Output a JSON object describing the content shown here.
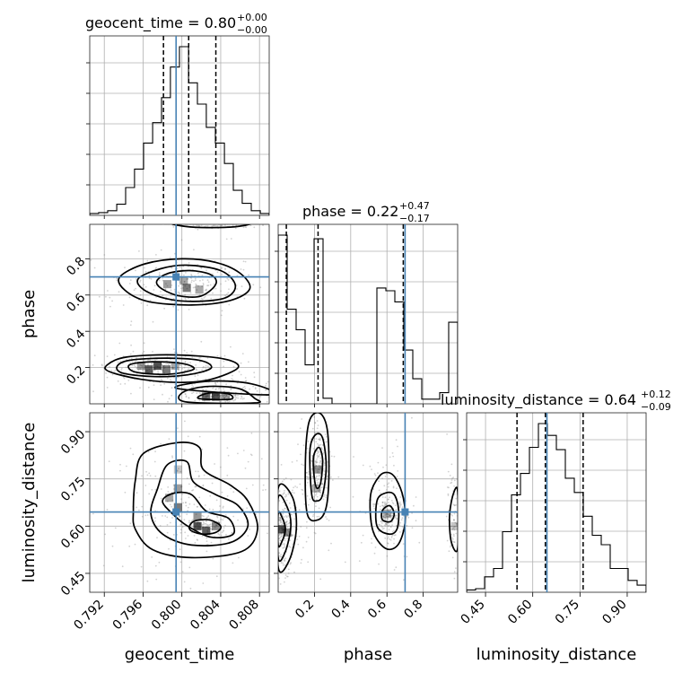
{
  "chart_data": {
    "type": "corner",
    "parameters": [
      "geocent_time",
      "phase",
      "luminosity_distance"
    ],
    "colors": {
      "truth": "#4682b4",
      "histogram": "#000000",
      "contour": "#000000",
      "grid": "#b0b0b0",
      "samples": "#7f7f7f"
    },
    "ranges": {
      "geocent_time": [
        0.7905,
        0.809
      ],
      "phase": [
        0.0,
        0.99
      ],
      "luminosity_distance": [
        0.39,
        0.96
      ]
    },
    "ticks": {
      "geocent_time": [
        0.792,
        0.796,
        0.8,
        0.804,
        0.808
      ],
      "phase": [
        0.2,
        0.4,
        0.6,
        0.8
      ],
      "luminosity_distance": [
        0.45,
        0.6,
        0.75,
        0.9
      ]
    },
    "tick_labels": {
      "geocent_time": [
        "0.792",
        "0.796",
        "0.800",
        "0.804",
        "0.808"
      ],
      "phase": [
        "0.2",
        "0.4",
        "0.6",
        "0.8"
      ],
      "luminosity_distance": [
        "0.45",
        "0.60",
        "0.75",
        "0.90"
      ]
    },
    "truths": {
      "geocent_time": 0.7994,
      "phase": 0.7,
      "luminosity_distance": 0.645
    },
    "quantiles": {
      "geocent_time": [
        0.7981,
        0.8007,
        0.8035
      ],
      "phase": [
        0.045,
        0.22,
        0.69
      ],
      "luminosity_distance": [
        0.55,
        0.64,
        0.76
      ]
    },
    "titles": {
      "geocent_time": {
        "main": "geocent_time = 0.80",
        "upper": "+0.00",
        "lower": "−0.00"
      },
      "phase": {
        "main": "phase = 0.22",
        "upper": "+0.47",
        "lower": "−0.17"
      },
      "luminosity_distance": {
        "main": "luminosity_distance = 0.64",
        "upper": "+0.12",
        "lower": "−0.09"
      }
    },
    "axis_labels": {
      "x": [
        "geocent_time",
        "phase",
        "luminosity_distance"
      ],
      "y": [
        "phase",
        "luminosity_distance"
      ]
    },
    "histograms": {
      "geocent_time": {
        "edges": [
          0.7905,
          0.79142,
          0.79235,
          0.79328,
          0.7942,
          0.79512,
          0.79605,
          0.79698,
          0.7979,
          0.79882,
          0.79975,
          0.80068,
          0.8016,
          0.80252,
          0.80345,
          0.80438,
          0.8053,
          0.80622,
          0.80715,
          0.80808,
          0.809
        ],
        "counts": [
          2,
          3,
          5,
          12,
          30,
          50,
          78,
          100,
          127,
          160,
          182,
          143,
          120,
          95,
          78,
          56,
          27,
          13,
          5,
          2
        ]
      },
      "phase": {
        "edges": [
          0.0,
          0.0495,
          0.099,
          0.1485,
          0.198,
          0.2475,
          0.297,
          0.3465,
          0.396,
          0.4455,
          0.495,
          0.5445,
          0.594,
          0.6435,
          0.693,
          0.7425,
          0.792,
          0.8415,
          0.891,
          0.9405,
          0.99
        ],
        "counts": [
          182,
          102,
          80,
          42,
          178,
          6,
          0,
          0,
          0,
          0,
          0,
          125,
          122,
          110,
          58,
          27,
          5,
          5,
          12,
          88
        ]
      },
      "luminosity_distance": {
        "edges": [
          0.39,
          0.4185,
          0.447,
          0.4755,
          0.504,
          0.5325,
          0.561,
          0.5895,
          0.618,
          0.6465,
          0.675,
          0.7035,
          0.732,
          0.7605,
          0.789,
          0.8175,
          0.846,
          0.8745,
          0.903,
          0.9315,
          0.96
        ],
        "counts": [
          2,
          3,
          13,
          20,
          51,
          82,
          100,
          122,
          142,
          132,
          120,
          96,
          84,
          64,
          48,
          40,
          20,
          20,
          10,
          6
        ]
      }
    },
    "panels_2d": [
      {
        "x": "geocent_time",
        "y": "phase",
        "contours": [
          [
            [
              0.7974,
              0.675
            ],
            [
              0.7985,
              0.718
            ],
            [
              0.8008,
              0.735
            ],
            [
              0.803,
              0.712
            ],
            [
              0.8035,
              0.66
            ],
            [
              0.802,
              0.595
            ],
            [
              0.7998,
              0.595
            ],
            [
              0.798,
              0.632
            ]
          ],
          [
            [
              0.7955,
              0.69
            ],
            [
              0.7978,
              0.745
            ],
            [
              0.8005,
              0.765
            ],
            [
              0.804,
              0.735
            ],
            [
              0.8055,
              0.655
            ],
            [
              0.8045,
              0.585
            ],
            [
              0.8012,
              0.565
            ],
            [
              0.7984,
              0.58
            ],
            [
              0.7961,
              0.628
            ]
          ],
          [
            [
              0.7936,
              0.7
            ],
            [
              0.7962,
              0.772
            ],
            [
              0.8,
              0.8
            ],
            [
              0.8035,
              0.78
            ],
            [
              0.806,
              0.72
            ],
            [
              0.807,
              0.635
            ],
            [
              0.805,
              0.57
            ],
            [
              0.801,
              0.545
            ],
            [
              0.7965,
              0.565
            ],
            [
              0.7941,
              0.628
            ]
          ],
          [
            [
              0.7952,
              0.175
            ],
            [
              0.7946,
              0.215
            ],
            [
              0.797,
              0.232
            ],
            [
              0.8001,
              0.222
            ],
            [
              0.8012,
              0.19
            ],
            [
              0.7985,
              0.163
            ]
          ],
          [
            [
              0.7933,
              0.205
            ],
            [
              0.7946,
              0.24
            ],
            [
              0.7985,
              0.252
            ],
            [
              0.802,
              0.238
            ],
            [
              0.803,
              0.196
            ],
            [
              0.8006,
              0.16
            ],
            [
              0.7972,
              0.15
            ],
            [
              0.794,
              0.168
            ]
          ],
          [
            [
              0.7923,
              0.215
            ],
            [
              0.7943,
              0.258
            ],
            [
              0.7993,
              0.27
            ],
            [
              0.8043,
              0.248
            ],
            [
              0.8058,
              0.2
            ],
            [
              0.803,
              0.135
            ],
            [
              0.7998,
              0.118
            ],
            [
              0.7958,
              0.135
            ],
            [
              0.7925,
              0.178
            ]
          ],
          [
            [
              0.8017,
              0.03
            ],
            [
              0.8028,
              0.06
            ],
            [
              0.8048,
              0.055
            ],
            [
              0.805,
              0.025
            ]
          ],
          [
            [
              0.8,
              0.06
            ],
            [
              0.8024,
              0.095
            ],
            [
              0.8058,
              0.085
            ],
            [
              0.8075,
              0.03
            ],
            [
              0.8075,
              0.005
            ],
            [
              0.8005,
              0.01
            ]
          ],
          [
            [
              0.7995,
              0.085
            ],
            [
              0.803,
              0.125
            ],
            [
              0.8072,
              0.11
            ],
            [
              0.8093,
              0.05
            ]
          ],
          [
            [
              0.7992,
              1.0
            ],
            [
              0.8004,
              0.978
            ],
            [
              0.803,
              0.972
            ],
            [
              0.806,
              0.98
            ],
            [
              0.8066,
              1.0
            ]
          ]
        ],
        "density": [
          {
            "x": 0.7985,
            "y": 0.66,
            "v": 0.5
          },
          {
            "x": 0.8002,
            "y": 0.68,
            "v": 0.45
          },
          {
            "x": 0.8005,
            "y": 0.64,
            "v": 0.7
          },
          {
            "x": 0.8018,
            "y": 0.63,
            "v": 0.45
          },
          {
            "x": 0.7958,
            "y": 0.21,
            "v": 0.5
          },
          {
            "x": 0.7966,
            "y": 0.19,
            "v": 0.85
          },
          {
            "x": 0.7975,
            "y": 0.21,
            "v": 0.9
          },
          {
            "x": 0.7984,
            "y": 0.19,
            "v": 0.7
          },
          {
            "x": 0.7993,
            "y": 0.21,
            "v": 0.45
          },
          {
            "x": 0.8025,
            "y": 0.04,
            "v": 0.8
          },
          {
            "x": 0.8035,
            "y": 0.04,
            "v": 0.9
          },
          {
            "x": 0.8045,
            "y": 0.045,
            "v": 0.5
          }
        ]
      },
      {
        "x": "geocent_time",
        "y": "luminosity_distance",
        "contours": [
          [
            [
              0.8012,
              0.615
            ],
            [
              0.8008,
              0.59
            ],
            [
              0.802,
              0.575
            ],
            [
              0.8035,
              0.58
            ],
            [
              0.804,
              0.6
            ],
            [
              0.8028,
              0.62
            ]
          ],
          [
            [
              0.799,
              0.64
            ],
            [
              0.8006,
              0.6
            ],
            [
              0.803,
              0.565
            ],
            [
              0.8053,
              0.575
            ],
            [
              0.8048,
              0.625
            ],
            [
              0.8025,
              0.648
            ],
            [
              0.801,
              0.7
            ],
            [
              0.7992,
              0.705
            ],
            [
              0.798,
              0.68
            ]
          ],
          [
            [
              0.7968,
              0.64
            ],
            [
              0.7975,
              0.72
            ],
            [
              0.7985,
              0.795
            ],
            [
              0.8005,
              0.805
            ],
            [
              0.8012,
              0.74
            ],
            [
              0.8035,
              0.7
            ],
            [
              0.8058,
              0.665
            ],
            [
              0.8068,
              0.6
            ],
            [
              0.805,
              0.548
            ],
            [
              0.801,
              0.54
            ],
            [
              0.798,
              0.575
            ]
          ],
          [
            [
              0.795,
              0.65
            ],
            [
              0.7952,
              0.745
            ],
            [
              0.796,
              0.83
            ],
            [
              0.7995,
              0.865
            ],
            [
              0.8018,
              0.85
            ],
            [
              0.8022,
              0.78
            ],
            [
              0.805,
              0.73
            ],
            [
              0.8068,
              0.68
            ],
            [
              0.8078,
              0.59
            ],
            [
              0.8062,
              0.52
            ],
            [
              0.801,
              0.5
            ],
            [
              0.797,
              0.525
            ],
            [
              0.7952,
              0.59
            ]
          ]
        ],
        "density": [
          {
            "x": 0.7996,
            "y": 0.66,
            "v": 0.7
          },
          {
            "x": 0.7996,
            "y": 0.72,
            "v": 0.5
          },
          {
            "x": 0.7996,
            "y": 0.78,
            "v": 0.3
          },
          {
            "x": 0.7987,
            "y": 0.69,
            "v": 0.45
          },
          {
            "x": 0.8016,
            "y": 0.6,
            "v": 0.9
          },
          {
            "x": 0.8025,
            "y": 0.585,
            "v": 0.85
          },
          {
            "x": 0.8035,
            "y": 0.6,
            "v": 0.6
          },
          {
            "x": 0.8016,
            "y": 0.63,
            "v": 0.55
          }
        ]
      },
      {
        "x": "phase",
        "y": "luminosity_distance",
        "contours": [
          [
            [
              0.0,
              0.54
            ],
            [
              0.02,
              0.55
            ],
            [
              0.04,
              0.59
            ],
            [
              0.02,
              0.63
            ],
            [
              0.0,
              0.64
            ]
          ],
          [
            [
              0.0,
              0.5
            ],
            [
              0.04,
              0.52
            ],
            [
              0.07,
              0.6
            ],
            [
              0.05,
              0.66
            ],
            [
              0.0,
              0.69
            ]
          ],
          [
            [
              0.0,
              0.47
            ],
            [
              0.06,
              0.49
            ],
            [
              0.1,
              0.59
            ],
            [
              0.08,
              0.69
            ],
            [
              0.0,
              0.72
            ]
          ],
          [
            [
              0.2,
              0.75
            ],
            [
              0.195,
              0.82
            ],
            [
              0.225,
              0.85
            ],
            [
              0.245,
              0.81
            ],
            [
              0.235,
              0.74
            ],
            [
              0.215,
              0.72
            ]
          ],
          [
            [
              0.185,
              0.7
            ],
            [
              0.175,
              0.84
            ],
            [
              0.205,
              0.89
            ],
            [
              0.245,
              0.88
            ],
            [
              0.265,
              0.79
            ],
            [
              0.245,
              0.7
            ],
            [
              0.215,
              0.68
            ]
          ],
          [
            [
              0.16,
              0.64
            ],
            [
              0.15,
              0.8
            ],
            [
              0.17,
              0.93
            ],
            [
              0.225,
              0.96
            ],
            [
              0.27,
              0.91
            ],
            [
              0.28,
              0.77
            ],
            [
              0.265,
              0.66
            ],
            [
              0.22,
              0.62
            ]
          ],
          [
            [
              0.575,
              0.62
            ],
            [
              0.575,
              0.65
            ],
            [
              0.615,
              0.665
            ],
            [
              0.64,
              0.64
            ],
            [
              0.62,
              0.615
            ]
          ],
          [
            [
              0.545,
              0.6
            ],
            [
              0.545,
              0.68
            ],
            [
              0.59,
              0.705
            ],
            [
              0.64,
              0.7
            ],
            [
              0.665,
              0.65
            ],
            [
              0.655,
              0.59
            ],
            [
              0.61,
              0.575
            ]
          ],
          [
            [
              0.52,
              0.59
            ],
            [
              0.51,
              0.7
            ],
            [
              0.56,
              0.76
            ],
            [
              0.61,
              0.77
            ],
            [
              0.65,
              0.75
            ],
            [
              0.69,
              0.69
            ],
            [
              0.7,
              0.61
            ],
            [
              0.66,
              0.54
            ],
            [
              0.59,
              0.53
            ]
          ],
          [
            [
              0.99,
              0.53
            ],
            [
              0.955,
              0.55
            ],
            [
              0.945,
              0.63
            ],
            [
              0.965,
              0.7
            ],
            [
              0.99,
              0.71
            ]
          ]
        ],
        "density": [
          {
            "x": 0.02,
            "y": 0.59,
            "v": 0.9
          },
          {
            "x": 0.05,
            "y": 0.58,
            "v": 0.6
          },
          {
            "x": 0.22,
            "y": 0.78,
            "v": 0.55
          },
          {
            "x": 0.21,
            "y": 0.72,
            "v": 0.4
          },
          {
            "x": 0.6,
            "y": 0.64,
            "v": 0.4
          },
          {
            "x": 0.975,
            "y": 0.6,
            "v": 0.3
          }
        ]
      }
    ]
  }
}
